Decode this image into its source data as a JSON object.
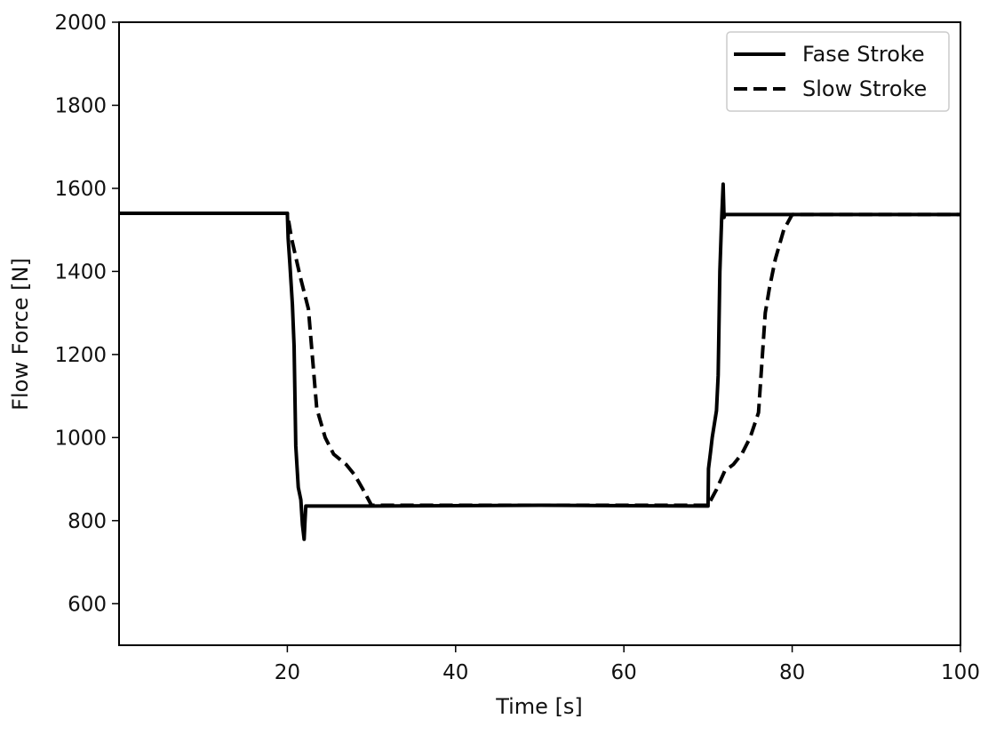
{
  "chart_data": {
    "type": "line",
    "title": "",
    "xlabel": "Time [s]",
    "ylabel": "Flow Force [N]",
    "xlim": [
      0,
      100
    ],
    "ylim": [
      500,
      2000
    ],
    "xticks": [
      20,
      40,
      60,
      80,
      100
    ],
    "yticks": [
      600,
      800,
      1000,
      1200,
      1400,
      1600,
      1800,
      2000
    ],
    "grid": false,
    "legend_position": "top-right",
    "series": [
      {
        "name": "Fase Stroke",
        "style": "solid",
        "color": "#000000",
        "x": [
          0,
          20,
          20.1,
          20.3,
          20.6,
          20.8,
          21.0,
          21.3,
          21.6,
          21.8,
          22.0,
          22.1,
          22.2,
          30,
          50,
          60,
          70,
          70.05,
          70.3,
          70.5,
          71.0,
          71.2,
          71.4,
          71.6,
          71.8,
          71.9,
          72.0,
          72.1,
          80,
          100
        ],
        "y": [
          1540,
          1540,
          1480,
          1420,
          1320,
          1220,
          980,
          880,
          850,
          790,
          755,
          800,
          835,
          835,
          837,
          836,
          835,
          925,
          965,
          1000,
          1065,
          1150,
          1400,
          1520,
          1610,
          1530,
          1537,
          1537,
          1537,
          1537
        ]
      },
      {
        "name": "Slow Stroke",
        "style": "dashed",
        "color": "#000000",
        "x": [
          0,
          20,
          20.5,
          21.5,
          22.5,
          23.5,
          24.5,
          25.5,
          27.0,
          28.0,
          29.0,
          30.0,
          50,
          70,
          71,
          72,
          73,
          74,
          75,
          76,
          76.8,
          77.3,
          78,
          79,
          80,
          100
        ],
        "y": [
          1540,
          1540,
          1480,
          1390,
          1310,
          1070,
          1000,
          960,
          935,
          910,
          875,
          837,
          837,
          837,
          875,
          920,
          935,
          960,
          1000,
          1060,
          1300,
          1360,
          1430,
          1500,
          1537,
          1537
        ]
      }
    ]
  }
}
